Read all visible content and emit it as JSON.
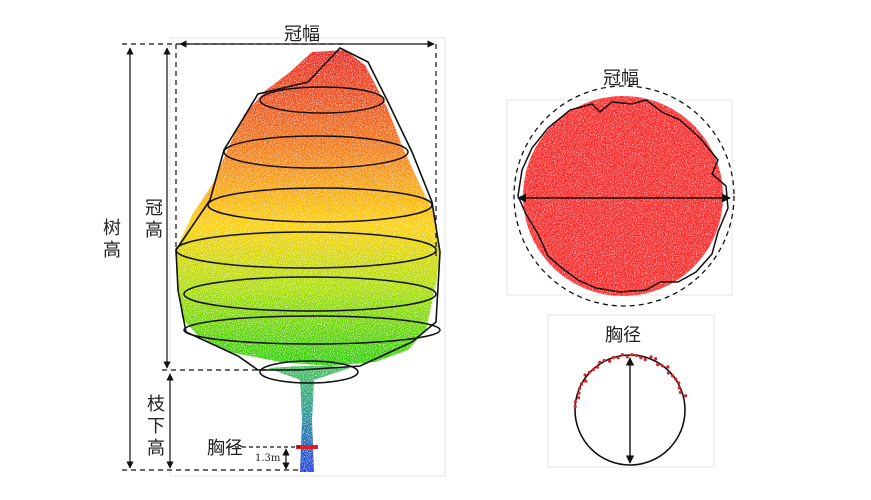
{
  "labels": {
    "crown_width_main": "冠幅",
    "tree_height": "树高",
    "crown_height": "冠高",
    "under_branch_height": "枝下高",
    "dbh_main": "胸径",
    "breast_height": "1.3m",
    "crown_width_top_view": "冠幅",
    "dbh_cross_section": "胸径"
  },
  "colors": {
    "crown_top": "#e8201c",
    "crown_mid": "#ffcc00",
    "crown_low": "#22cc00",
    "trunk_top": "#33aa66",
    "trunk_bottom": "#1a33dd",
    "top_view_points": "#ff2020",
    "outline": "#111111"
  }
}
